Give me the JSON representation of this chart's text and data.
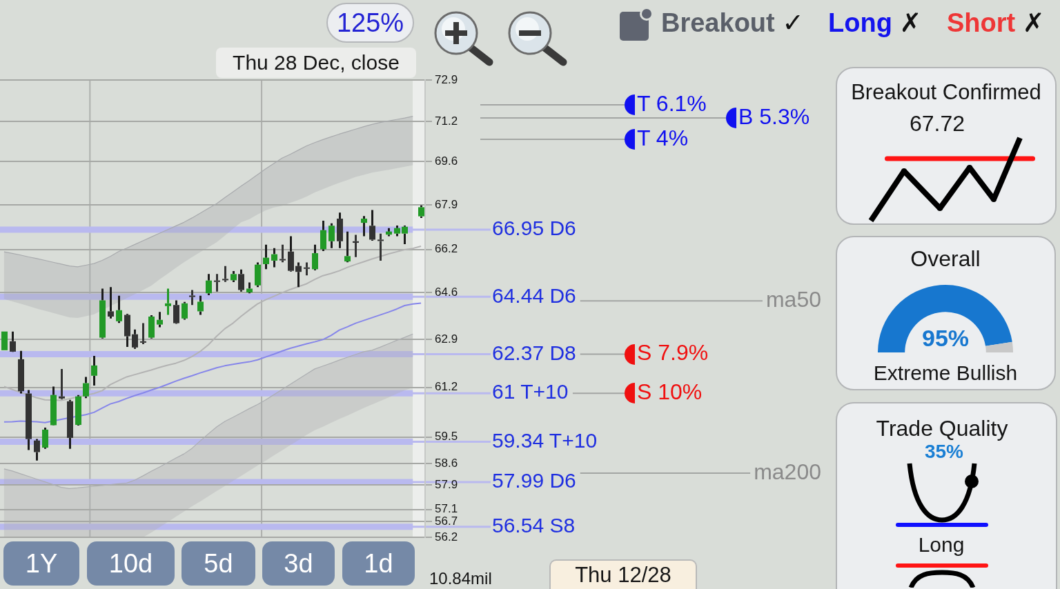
{
  "chart_data": [
    {
      "type": "candlestick",
      "categories": [
        null,
        null,
        null,
        null,
        null,
        null,
        null,
        null,
        null,
        null,
        null,
        null,
        null,
        null,
        null,
        null,
        null,
        null,
        null,
        null,
        null,
        null,
        null,
        null,
        null,
        null,
        null,
        null,
        null,
        null,
        null,
        null,
        null,
        null,
        null,
        null,
        null,
        null,
        null,
        null,
        null,
        null,
        null,
        null,
        null,
        null,
        null,
        null,
        null,
        null,
        null,
        null
      ],
      "ohlc": [
        [
          62.51,
          63.18,
          62.51,
          63.18
        ],
        [
          62.83,
          63.18,
          62.45,
          62.46
        ],
        [
          62.19,
          62.49,
          60.99,
          61.07
        ],
        [
          60.99,
          61.11,
          59.06,
          59.43
        ],
        [
          59.38,
          59.43,
          58.71,
          58.99
        ],
        [
          59.14,
          59.82,
          59.1,
          59.75
        ],
        [
          59.9,
          61.23,
          59.89,
          60.94
        ],
        [
          60.89,
          61.85,
          60.79,
          60.82
        ],
        [
          60.72,
          60.77,
          59.1,
          59.47
        ],
        [
          59.91,
          60.94,
          59.89,
          60.89
        ],
        [
          60.89,
          61.57,
          60.83,
          61.35
        ],
        [
          61.61,
          62.31,
          61.27,
          61.97
        ],
        [
          62.96,
          64.74,
          62.93,
          64.31
        ],
        [
          63.91,
          64.8,
          63.65,
          63.72
        ],
        [
          63.55,
          64.48,
          63.49,
          63.95
        ],
        [
          63.78,
          63.82,
          62.63,
          63.01
        ],
        [
          63.08,
          63.25,
          62.56,
          62.61
        ],
        [
          62.83,
          63.48,
          62.73,
          62.78
        ],
        [
          62.96,
          63.77,
          62.93,
          63.72
        ],
        [
          63.43,
          63.89,
          63.33,
          63.6
        ],
        [
          64.1,
          64.74,
          63.78,
          64.2
        ],
        [
          64.14,
          64.31,
          63.46,
          63.48
        ],
        [
          63.65,
          64.25,
          63.61,
          64.2
        ],
        [
          64.48,
          64.69,
          64.14,
          64.44
        ],
        [
          63.91,
          64.48,
          63.78,
          64.26
        ],
        [
          64.57,
          65.28,
          64.5,
          65.04
        ],
        [
          65.03,
          65.28,
          64.63,
          65
        ],
        [
          65.09,
          65.58,
          64.99,
          65.06
        ],
        [
          65.05,
          65.39,
          64.98,
          65.28
        ],
        [
          65.28,
          65.45,
          64.63,
          64.69
        ],
        [
          64.6,
          64.97,
          64.57,
          64.74
        ],
        [
          64.86,
          65.71,
          64.8,
          65.63
        ],
        [
          65.65,
          66.38,
          65.46,
          65.89
        ],
        [
          65.78,
          66.25,
          65.53,
          66.02
        ],
        [
          65.84,
          66.38,
          65.72,
          65.79
        ],
        [
          66.12,
          66.7,
          65.37,
          65.4
        ],
        [
          65.58,
          65.71,
          64.8,
          65.36
        ],
        [
          65.52,
          65.71,
          65.23,
          65.48
        ],
        [
          65.46,
          66.38,
          65.42,
          66.06
        ],
        [
          66.21,
          67.29,
          66.14,
          66.93
        ],
        [
          66.51,
          67.19,
          66.25,
          67.1
        ],
        [
          67.37,
          67.6,
          66.25,
          66.51
        ],
        [
          65.75,
          66.88,
          65.72,
          65.95
        ],
        [
          66.51,
          66.75,
          65.91,
          66.45
        ],
        [
          67.21,
          67.47,
          66.7,
          67.37
        ],
        [
          67.1,
          67.7,
          66.53,
          66.57
        ],
        [
          66.56,
          66.8,
          65.78,
          66.53
        ],
        [
          66.76,
          67.01,
          66.7,
          66.88
        ],
        [
          66.8,
          67.11,
          66.7,
          67.01
        ],
        [
          66.8,
          67.11,
          66.4,
          67.06
        ],
        null,
        [
          67.46,
          67.88,
          67.4,
          67.81
        ]
      ],
      "colors": [
        "#229a27",
        "#333333",
        "#333333",
        "#333333",
        "#333333",
        "#229a27",
        "#229a27",
        "#333333",
        "#333333",
        "#229a27",
        "#229a27",
        "#229a27",
        "#229a27",
        "#333333",
        "#229a27",
        "#333333",
        "#333333",
        "#333333",
        "#229a27",
        "#229a27",
        "#229a27",
        "#333333",
        "#229a27",
        "#333333",
        "#229a27",
        "#229a27",
        "#333333",
        "#333333",
        "#229a27",
        "#333333",
        "#229a27",
        "#229a27",
        "#229a27",
        "#229a27",
        "#333333",
        "#333333",
        "#333333",
        "#333333",
        "#229a27",
        "#229a27",
        "#229a27",
        "#333333",
        "#229a27",
        "#333333",
        "#229a27",
        "#333333",
        "#333333",
        "#229a27",
        "#229a27",
        "#229a27",
        null,
        "#229a27"
      ],
      "series": [
        {
          "type": "line",
          "color": "#a8aaad",
          "values": [
            66.11,
            66.05,
            65.99,
            65.92,
            65.86,
            65.79,
            65.72,
            65.65,
            65.58,
            65.55,
            65.61,
            65.67,
            65.79,
            65.94,
            66.12,
            66.25,
            66.39,
            66.53,
            66.67,
            66.81,
            66.95,
            67.09,
            67.23,
            67.4,
            67.58,
            67.77,
            67.95,
            68.18,
            68.4,
            68.63,
            68.85,
            69.08,
            69.31,
            69.52,
            69.73,
            69.88,
            70.05,
            70.22,
            70.35,
            70.47,
            70.58,
            70.69,
            70.79,
            70.89,
            70.99,
            71.08,
            71.16,
            71.22,
            71.28,
            71.34,
            71.41,
            null
          ],
          "upper": [
            66.11,
            66.05,
            65.99,
            65.92,
            65.86,
            65.79,
            65.72,
            65.65,
            65.58,
            65.55,
            65.61,
            65.67,
            65.79,
            65.94,
            66.12,
            66.25,
            66.39,
            66.53,
            66.67,
            66.81,
            66.95,
            67.09,
            67.23,
            67.4,
            67.58,
            67.77,
            67.95,
            68.18,
            68.4,
            68.63,
            68.85,
            69.08,
            69.31,
            69.52,
            69.73,
            69.88,
            70.05,
            70.22,
            70.35,
            70.47,
            70.58,
            70.69,
            70.79,
            70.89,
            70.99,
            71.08,
            71.16,
            71.22,
            71.28,
            71.34,
            71.41,
            null
          ],
          "lower": [
            64.36,
            64.27,
            64.19,
            64.1,
            64.01,
            63.93,
            63.85,
            63.77,
            63.69,
            63.67,
            63.73,
            63.8,
            63.95,
            64.1,
            64.24,
            64.39,
            64.54,
            64.69,
            64.85,
            65.08,
            65.29,
            65.51,
            65.72,
            65.91,
            66.1,
            66.28,
            66.47,
            66.72,
            66.98,
            67.23,
            67.35,
            67.53,
            67.69,
            67.8,
            67.86,
            67.98,
            68.09,
            68.22,
            68.38,
            68.51,
            68.64,
            68.76,
            68.87,
            68.99,
            69.07,
            69.16,
            69.21,
            69.27,
            69.33,
            69.39,
            69.45,
            null
          ]
        },
        {
          "type": "line",
          "color": "#acaeb1",
          "values": [
            58.43,
            58.36,
            58.27,
            58.18,
            58.09,
            58,
            57.91,
            57.82,
            57.78,
            57.8,
            57.83,
            57.86,
            57.88,
            57.91,
            57.94,
            57.96,
            58.06,
            58.2,
            58.35,
            58.49,
            58.64,
            58.79,
            58.93,
            59.12,
            59.37,
            59.61,
            59.84,
            60.03,
            60.17,
            60.32,
            60.47,
            60.61,
            60.77,
            60.95,
            61.13,
            61.31,
            61.49,
            61.67,
            61.85,
            61.95,
            62.05,
            62.16,
            62.26,
            62.36,
            62.46,
            62.51,
            62.62,
            62.74,
            62.86,
            62.97,
            63.09,
            null
          ],
          "upper": [
            58.43,
            58.36,
            58.27,
            58.18,
            58.09,
            58,
            57.91,
            57.82,
            57.78,
            57.8,
            57.83,
            57.86,
            57.88,
            57.91,
            57.94,
            57.96,
            58.06,
            58.2,
            58.35,
            58.49,
            58.64,
            58.79,
            58.93,
            59.12,
            59.37,
            59.61,
            59.84,
            60.03,
            60.17,
            60.32,
            60.47,
            60.61,
            60.77,
            60.95,
            61.13,
            61.31,
            61.49,
            61.67,
            61.85,
            61.95,
            62.05,
            62.16,
            62.26,
            62.36,
            62.46,
            62.51,
            62.62,
            62.74,
            62.86,
            62.97,
            63.09,
            null
          ],
          "lower": [
            56.2,
            56.2,
            56.2,
            56.2,
            56.2,
            56.2,
            56.2,
            56.2,
            56.2,
            56.2,
            56.2,
            56.2,
            56.2,
            56.2,
            56.2,
            56.2,
            56.2,
            56.2,
            56.35,
            56.52,
            56.69,
            56.86,
            57.03,
            57.2,
            57.36,
            57.53,
            57.7,
            57.86,
            58.03,
            58.2,
            58.37,
            58.54,
            58.7,
            58.88,
            59.05,
            59.22,
            59.39,
            59.57,
            59.73,
            59.85,
            59.98,
            60.11,
            60.23,
            60.36,
            60.49,
            60.61,
            60.73,
            60.85,
            60.98,
            61.1,
            61.2,
            null
          ]
        },
        {
          "type": "line",
          "color": "#b3b3b3",
          "values": [
            61.23,
            61.13,
            null,
            null,
            60.84,
            60.77,
            null,
            60.75,
            null,
            null,
            null,
            60.99,
            61.09,
            61.3,
            61.44,
            61.57,
            61.65,
            61.73,
            61.81,
            61.9,
            61.98,
            62.05,
            62.15,
            62.29,
            62.47,
            62.71,
            63.01,
            63.28,
            63.48,
            63.73,
            63.96,
            64.18,
            64.33,
            64.46,
            64.59,
            64.71,
            null,
            64.92,
            65.08,
            65.22,
            65.3,
            65.4,
            65.53,
            65.64,
            65.74,
            65.84,
            null,
            66.03,
            66.11,
            66.19,
            66.24,
            66.32
          ]
        },
        {
          "type": "line",
          "color": "#8686ea",
          "values": [
            60.01,
            60.02,
            60.04,
            null,
            60.02,
            59.99,
            null,
            60.1,
            null,
            null,
            60.26,
            60.34,
            60.49,
            60.63,
            60.71,
            60.82,
            60.92,
            61.01,
            61.11,
            61.2,
            61.31,
            61.42,
            61.52,
            61.61,
            61.71,
            61.8,
            61.89,
            61.96,
            62.01,
            62.06,
            62.1,
            62.17,
            62.27,
            62.37,
            62.48,
            62.58,
            62.66,
            62.74,
            62.81,
            62.89,
            63.04,
            63.23,
            63.35,
            63.48,
            63.58,
            63.68,
            63.78,
            63.88,
            63.99,
            64.12,
            64.18,
            64.21
          ]
        }
      ],
      "ylim": [
        56.2,
        72.9
      ],
      "yticks": [
        72.9,
        71.2,
        69.6,
        67.9,
        66.2,
        64.6,
        62.9,
        61.2,
        59.5,
        58.6,
        57.9,
        57.1,
        56.7,
        56.2
      ],
      "log": true,
      "grid": "y",
      "tick_labels": "y",
      "ref_lines": [
        {
          "axis": "y",
          "value": 66.95,
          "label": "66.95 D6",
          "color": "#b9b9ef"
        },
        {
          "axis": "y",
          "value": 64.44,
          "label": "64.44 D6",
          "color": "#b9b9ef"
        },
        {
          "axis": "y",
          "value": 62.37,
          "label": "62.37 D8",
          "color": "#b9b9ef"
        },
        {
          "axis": "y",
          "value": 61,
          "label": "61 T+10",
          "color": "#b9b9ef"
        },
        {
          "axis": "y",
          "value": 59.34,
          "label": "59.34 T+10",
          "color": "#b9b9ef"
        },
        {
          "axis": "y",
          "value": 57.99,
          "label": "57.99 D6",
          "color": "#b9b9ef"
        },
        {
          "axis": "y",
          "value": 56.54,
          "label": "56.54 S8",
          "color": "#b9b9ef"
        },
        {
          "axis": "y",
          "value": 71.88,
          "label": "T 6.1%",
          "color": "#a3a5a3"
        },
        {
          "axis": "y",
          "value": 71.34,
          "label": "B 5.3%",
          "color": "#a3a5a3"
        },
        {
          "axis": "y",
          "value": 70.48,
          "label": "T 4%",
          "color": "#a3a5a3"
        },
        {
          "axis": "y",
          "value": 62.37,
          "label": "S 7.9%",
          "color": "#a3a5a3"
        },
        {
          "axis": "y",
          "value": 61,
          "label": "S 10%",
          "color": "#a3a5a3"
        },
        {
          "axis": "y",
          "value": 64.29,
          "label": "ma50",
          "color": "#a3a5a3"
        },
        {
          "axis": "y",
          "value": 58.29,
          "label": "ma200",
          "color": "#a3a5a3"
        }
      ],
      "annotations": [
        "125%",
        "Thu 28 Dec, close",
        "1Y",
        "10d",
        "5d",
        "3d",
        "1d",
        "10.84mil",
        "Thu 12/28"
      ]
    },
    {
      "type": "other",
      "annotations": [
        "Breakout ✓",
        "Long ✗",
        "Short ✗"
      ]
    },
    {
      "type": "other",
      "title": "Breakout Confirmed",
      "annotations": [
        "67.72"
      ]
    },
    {
      "type": "donut",
      "title": "Overall",
      "categories": [
        null,
        null
      ],
      "values": [
        95,
        5
      ],
      "colors": [
        "#1777cf",
        "#c8c8c8"
      ],
      "value_labels": [
        "95%",
        null
      ],
      "annotations": [
        "Extreme Bullish"
      ]
    },
    {
      "type": "other",
      "title": "Trade Quality",
      "annotations": [
        "35%",
        "Long"
      ]
    }
  ]
}
